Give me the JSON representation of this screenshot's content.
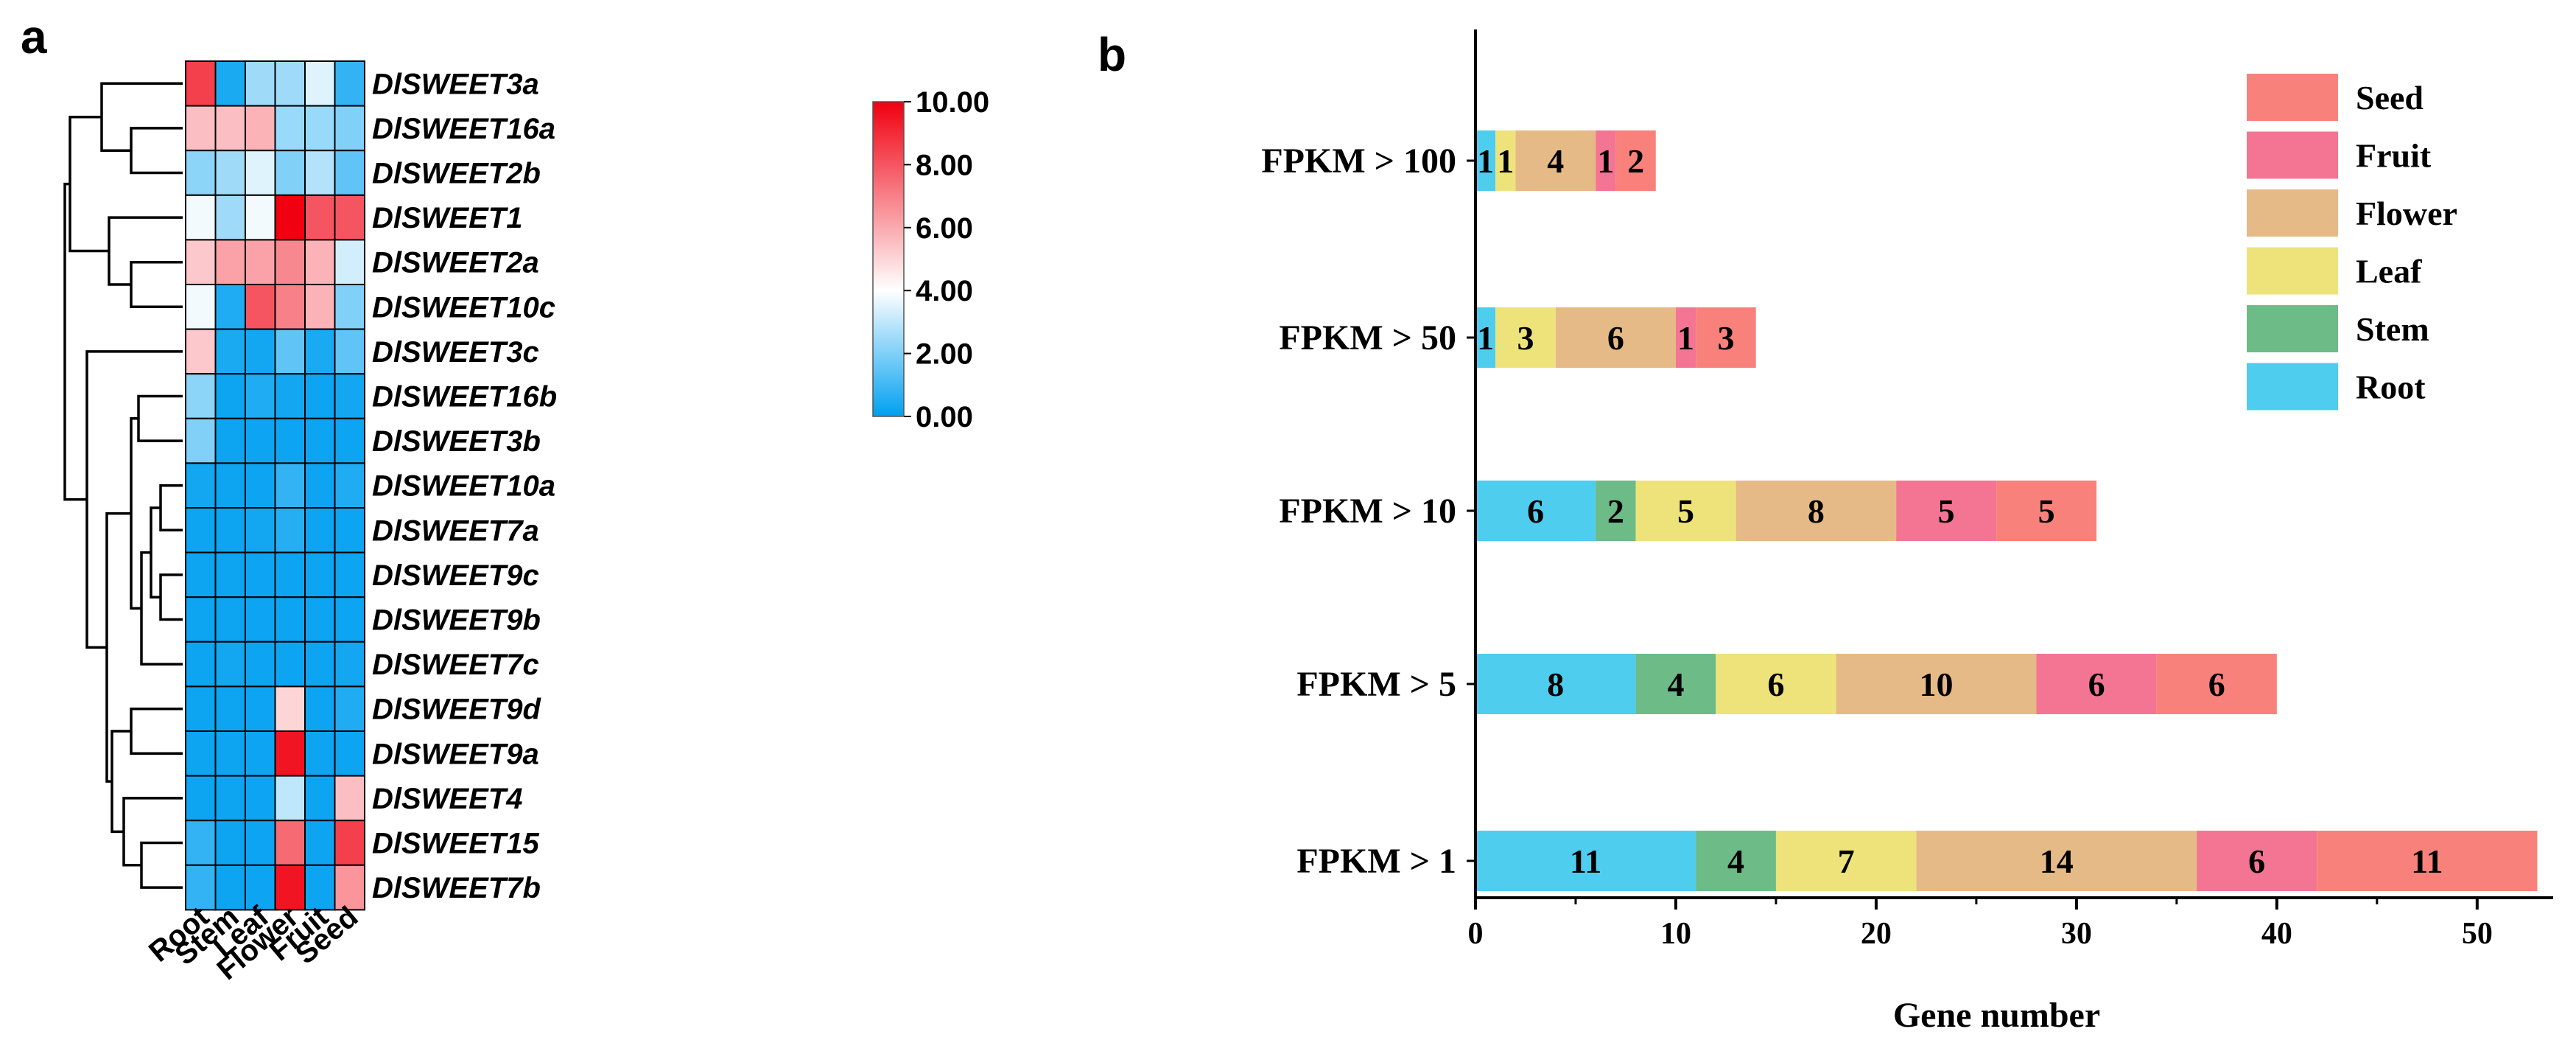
{
  "panel_a_label": "a",
  "panel_b_label": "b",
  "chart_data": [
    {
      "type": "heatmap",
      "panel": "a",
      "columns": [
        "Root",
        "Stem",
        "Leaf",
        "Flower",
        "Fruit",
        "Seed"
      ],
      "rows": [
        "DlSWEET3a",
        "DlSWEET16a",
        "DlSWEET2b",
        "DlSWEET1",
        "DlSWEET2a",
        "DlSWEET10c",
        "DlSWEET3c",
        "DlSWEET16b",
        "DlSWEET3b",
        "DlSWEET10a",
        "DlSWEET7a",
        "DlSWEET9c",
        "DlSWEET9b",
        "DlSWEET7c",
        "DlSWEET9d",
        "DlSWEET9a",
        "DlSWEET4",
        "DlSWEET15",
        "DlSWEET7b"
      ],
      "values": [
        [
          8.5,
          0.4,
          2.5,
          2.5,
          3.5,
          0.8
        ],
        [
          5.5,
          5.5,
          5.8,
          2.4,
          2.4,
          2.0
        ],
        [
          2.2,
          2.5,
          3.5,
          2.0,
          2.8,
          1.5
        ],
        [
          3.8,
          2.5,
          3.8,
          10.0,
          8.0,
          8.0
        ],
        [
          5.3,
          6.2,
          6.2,
          6.8,
          5.8,
          3.3
        ],
        [
          3.8,
          0.5,
          8.0,
          7.0,
          5.8,
          2.0
        ],
        [
          5.3,
          0.4,
          0.3,
          1.5,
          0.4,
          1.5
        ],
        [
          2.2,
          0.2,
          0.5,
          0.3,
          0.2,
          0.3
        ],
        [
          2.0,
          0.2,
          0.2,
          0.2,
          0.2,
          0.2
        ],
        [
          0.3,
          0.2,
          0.2,
          0.8,
          0.2,
          0.5
        ],
        [
          0.2,
          0.2,
          0.3,
          0.6,
          0.2,
          0.2
        ],
        [
          0.2,
          0.2,
          0.2,
          0.2,
          0.2,
          0.2
        ],
        [
          0.2,
          0.2,
          0.2,
          0.2,
          0.2,
          0.2
        ],
        [
          0.2,
          0.3,
          0.2,
          0.2,
          0.2,
          0.3
        ],
        [
          0.2,
          0.2,
          0.2,
          5.0,
          0.2,
          0.5
        ],
        [
          0.2,
          0.2,
          0.2,
          9.5,
          0.2,
          0.2
        ],
        [
          0.2,
          0.2,
          0.2,
          3.0,
          0.2,
          5.5
        ],
        [
          0.8,
          0.2,
          0.2,
          7.5,
          0.2,
          8.5
        ],
        [
          0.8,
          0.2,
          0.2,
          9.5,
          0.2,
          6.5
        ]
      ],
      "colorbar": {
        "range": [
          0,
          10
        ],
        "tick_labels": [
          "10.00",
          "8.00",
          "6.00",
          "4.00",
          "2.00",
          "0.00"
        ],
        "colors": {
          "low": "#00a0f0",
          "mid": "#ffffff",
          "high": "#f00010"
        }
      },
      "dendrogram": "row clustering tree on left"
    },
    {
      "type": "bar",
      "panel": "b",
      "orientation": "horizontal",
      "stacked": true,
      "categories": [
        "FPKM > 100",
        "FPKM > 50",
        "FPKM > 10",
        "FPKM > 5",
        "FPKM > 1"
      ],
      "series": [
        {
          "name": "Root",
          "color": "#4fcdef",
          "values": [
            1,
            1,
            6,
            8,
            11
          ]
        },
        {
          "name": "Stem",
          "color": "#6dbb87",
          "values": [
            0,
            0,
            2,
            4,
            4
          ]
        },
        {
          "name": "Leaf",
          "color": "#eee37b",
          "values": [
            1,
            3,
            5,
            6,
            7
          ]
        },
        {
          "name": "Flower",
          "color": "#e6ba86",
          "values": [
            4,
            6,
            8,
            10,
            14
          ]
        },
        {
          "name": "Fruit",
          "color": "#f47593",
          "values": [
            1,
            1,
            5,
            6,
            6
          ]
        },
        {
          "name": "Seed",
          "color": "#f8827b",
          "values": [
            2,
            3,
            5,
            6,
            11
          ]
        }
      ],
      "segment_labels": [
        [
          "1",
          "",
          "1",
          "4",
          "1",
          "2"
        ],
        [
          "1",
          "",
          "3",
          "6",
          "1",
          "3"
        ],
        [
          "6",
          "2",
          "5",
          "8",
          "5",
          "5"
        ],
        [
          "8",
          "4",
          "6",
          "10",
          "6",
          "6"
        ],
        [
          "11",
          "4",
          "7",
          "14",
          "6",
          "11"
        ]
      ],
      "xlabel": "Gene number",
      "ylabel": "",
      "xlim": [
        0,
        53.5
      ],
      "x_ticks": [
        0,
        10,
        20,
        30,
        40,
        50
      ],
      "x_tick_labels": [
        "0",
        "10",
        "20",
        "30",
        "40",
        "50"
      ],
      "legend_order": [
        "Seed",
        "Fruit",
        "Flower",
        "Leaf",
        "Stem",
        "Root"
      ],
      "legend_position": "top-right"
    }
  ]
}
